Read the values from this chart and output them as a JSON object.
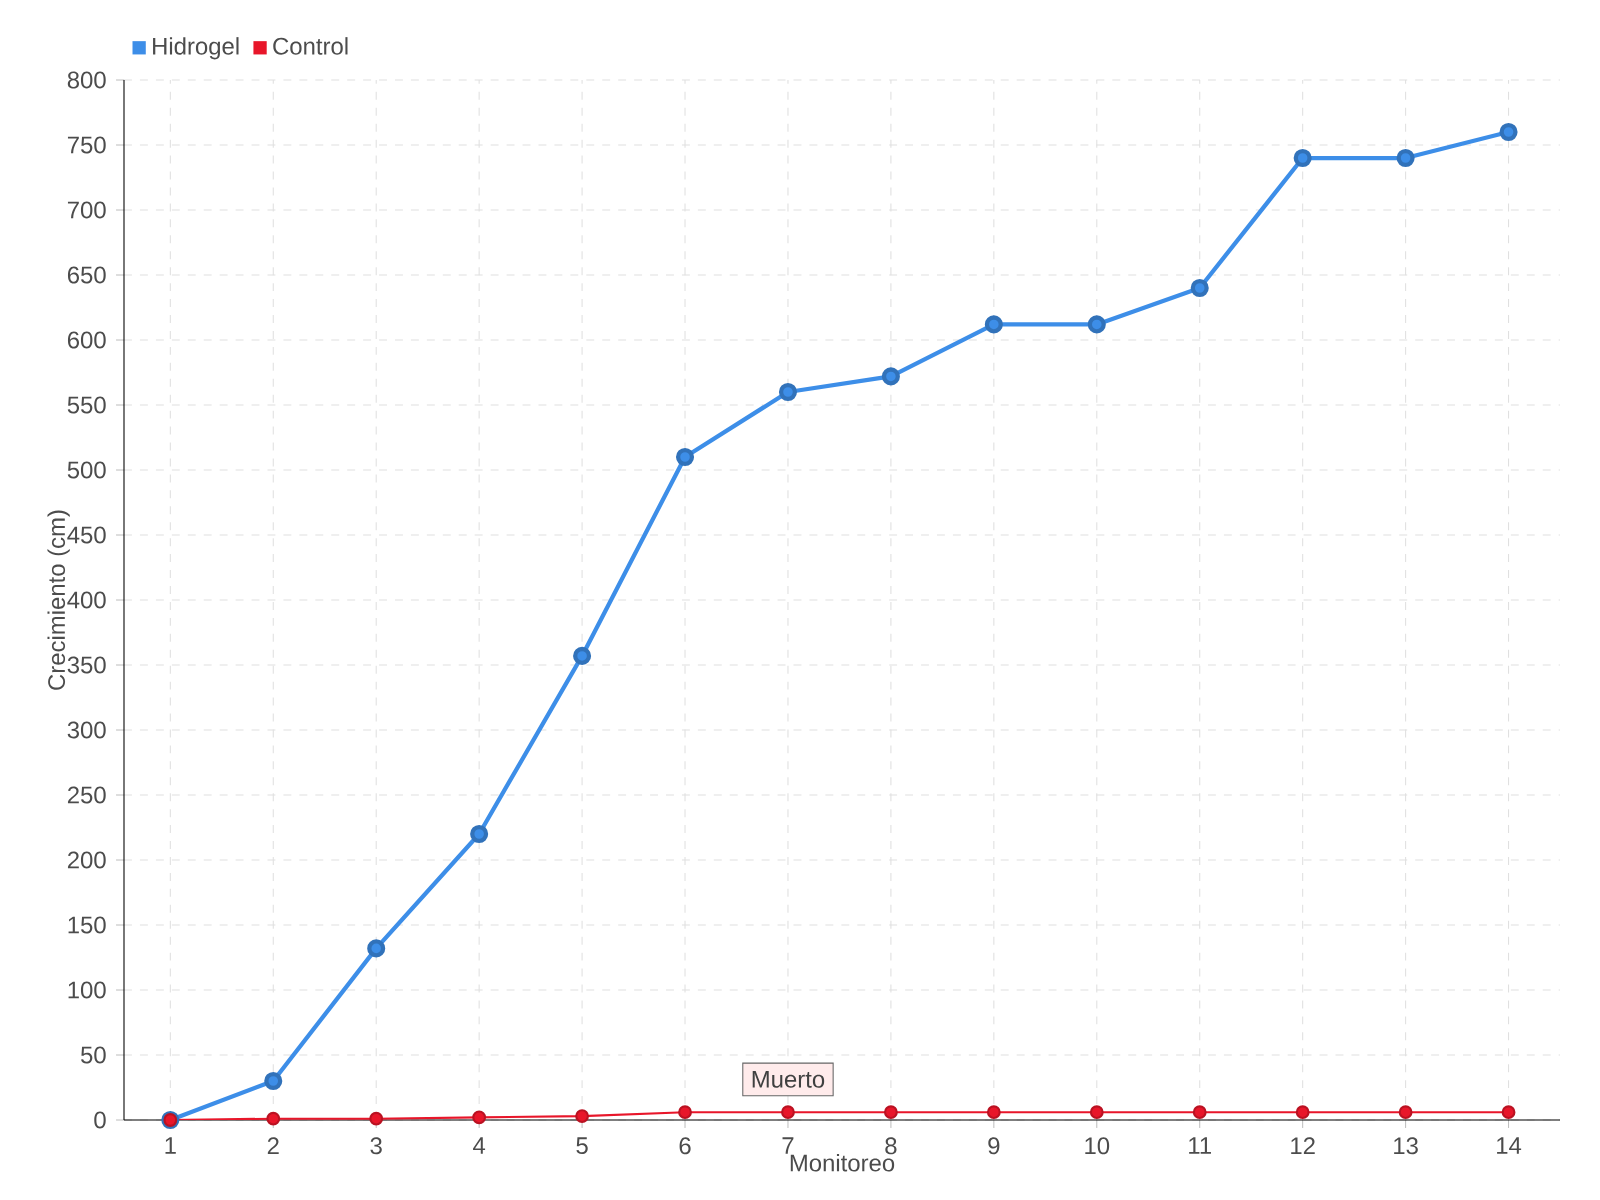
{
  "chart_data": {
    "type": "line",
    "xlabel": "Monitoreo",
    "ylabel": "Crecimiento (cm)",
    "categories": [
      "1",
      "2",
      "3",
      "4",
      "5",
      "6",
      "7",
      "8",
      "9",
      "10",
      "11",
      "12",
      "13",
      "14"
    ],
    "series": [
      {
        "name": "Hidrogel",
        "color": "#3d8ee8",
        "values": [
          0,
          30,
          132,
          220,
          357,
          510,
          560,
          572,
          612,
          612,
          640,
          740,
          740,
          760
        ]
      },
      {
        "name": "Control",
        "color": "#e8162a",
        "values": [
          0,
          1,
          1,
          2,
          3,
          6,
          6,
          6,
          6,
          6,
          6,
          6,
          6,
          6
        ]
      }
    ],
    "ylim": [
      0,
      800
    ],
    "yticks": [
      0,
      50,
      100,
      150,
      200,
      250,
      300,
      350,
      400,
      450,
      500,
      550,
      600,
      650,
      700,
      750,
      800
    ],
    "annotations": [
      {
        "text": "Muerto",
        "x": "7",
        "y": 6
      }
    ],
    "grid": true,
    "legend": "top left",
    "marker": "circle",
    "line_style": "solid"
  }
}
